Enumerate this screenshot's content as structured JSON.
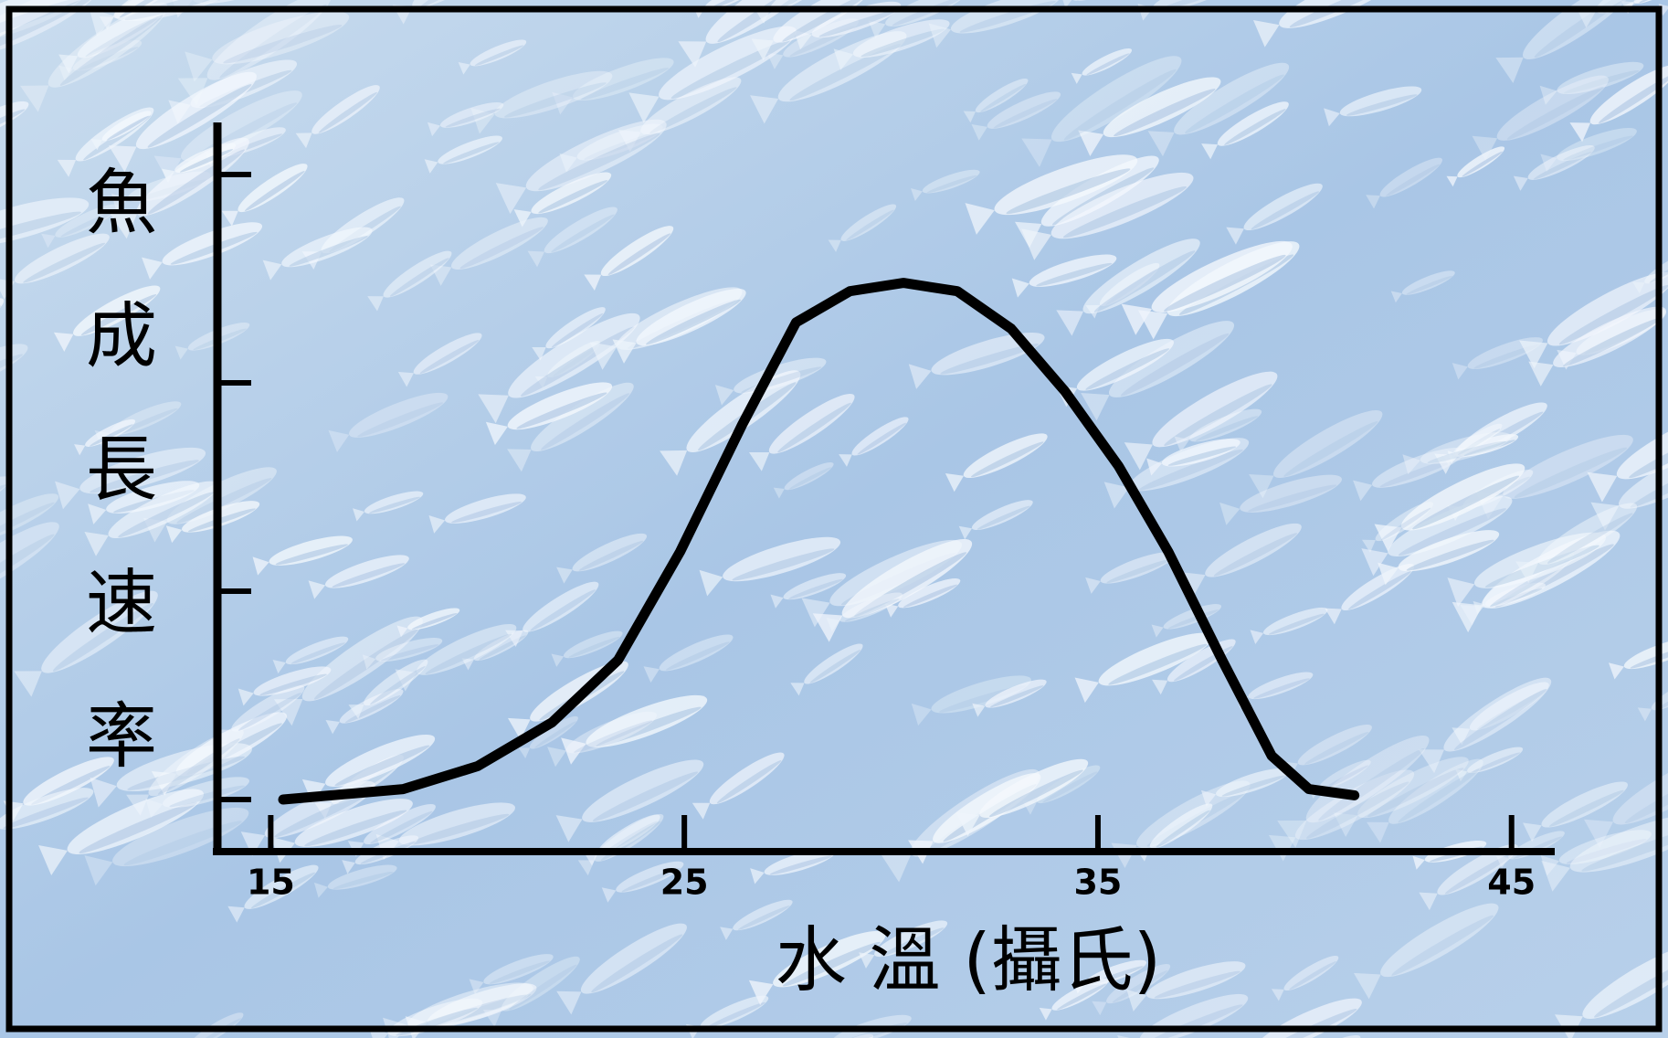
{
  "chart_data": {
    "type": "line",
    "x_label": "水 溫 (攝氏)",
    "y_label": "魚成長速率",
    "xlim": [
      13.6,
      46
    ],
    "xticks": [
      15,
      25,
      35,
      45
    ],
    "ylim": [
      0,
      3.5
    ],
    "yticks": [
      0.25,
      1.25,
      2.25,
      3.25
    ],
    "series": [
      {
        "color": "#000000",
        "x": [
          15.3,
          18.2,
          20.0,
          21.8,
          23.4,
          24.9,
          26.4,
          27.7,
          29.0,
          30.3,
          31.6,
          32.9,
          34.2,
          35.5,
          36.7,
          38.0,
          39.2,
          40.1,
          41.2
        ],
        "values": [
          0.25,
          0.3,
          0.41,
          0.62,
          0.92,
          1.44,
          2.05,
          2.54,
          2.69,
          2.73,
          2.69,
          2.51,
          2.21,
          1.85,
          1.44,
          0.92,
          0.46,
          0.3,
          0.27
        ]
      }
    ]
  }
}
